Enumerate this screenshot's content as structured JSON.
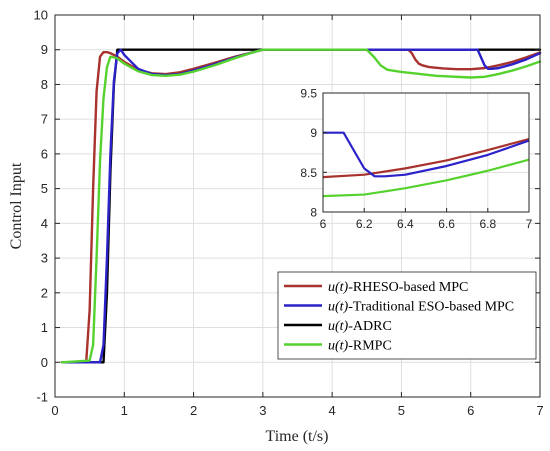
{
  "chart_data": {
    "type": "line",
    "xlabel": "Time (t/s)",
    "ylabel": "Control Input",
    "xlim": [
      0,
      7
    ],
    "ylim": [
      -1,
      10
    ],
    "xticks": [
      "0",
      "1",
      "2",
      "3",
      "4",
      "5",
      "6",
      "7"
    ],
    "yticks": [
      "-1",
      "0",
      "1",
      "2",
      "3",
      "4",
      "5",
      "6",
      "7",
      "8",
      "9",
      "10"
    ],
    "grid": true,
    "legend_position": "lower-right",
    "series": [
      {
        "name": "u(t)-RHESO-based MPC",
        "legend_var": "u(t)",
        "legend_rest": "-RHESO-based MPC",
        "color": "#a8322d",
        "x": [
          0.1,
          0.45,
          0.5,
          0.55,
          0.6,
          0.65,
          0.7,
          0.75,
          0.8,
          0.9,
          1.0,
          1.2,
          1.4,
          1.6,
          1.8,
          2.0,
          2.3,
          2.6,
          2.9,
          3.0,
          4.0,
          5.0,
          5.1,
          5.15,
          5.2,
          5.25,
          5.3,
          5.4,
          5.6,
          5.8,
          6.0,
          6.2,
          6.4,
          6.6,
          6.8,
          7.0
        ],
        "y": [
          0,
          0,
          1.5,
          5.0,
          7.8,
          8.8,
          8.93,
          8.93,
          8.9,
          8.8,
          8.65,
          8.42,
          8.32,
          8.3,
          8.35,
          8.45,
          8.62,
          8.8,
          8.95,
          9.0,
          9.0,
          9.0,
          9.0,
          8.9,
          8.72,
          8.6,
          8.55,
          8.5,
          8.46,
          8.44,
          8.44,
          8.47,
          8.55,
          8.65,
          8.78,
          8.92
        ]
      },
      {
        "name": "u(t)-Traditional ESO-based MPC",
        "legend_var": "u(t)",
        "legend_rest": "-Traditional ESO-based MPC",
        "color": "#2b22c9",
        "x": [
          0.1,
          0.65,
          0.7,
          0.75,
          0.8,
          0.85,
          0.9,
          0.95,
          1.0,
          1.2,
          1.4,
          1.6,
          1.8,
          2.0,
          2.3,
          2.6,
          2.9,
          3.0,
          4.0,
          5.0,
          6.0,
          6.1,
          6.2,
          6.25,
          6.3,
          6.4,
          6.6,
          6.8,
          7.0
        ],
        "y": [
          0,
          0,
          0.5,
          3.0,
          6.0,
          8.1,
          8.9,
          9.0,
          8.85,
          8.45,
          8.3,
          8.27,
          8.3,
          8.4,
          8.58,
          8.78,
          8.95,
          9.0,
          9.0,
          9.0,
          9.0,
          9.0,
          8.55,
          8.45,
          8.45,
          8.47,
          8.58,
          8.72,
          8.9
        ]
      },
      {
        "name": "u(t)-ADRC",
        "legend_var": "u(t)",
        "legend_rest": "-ADRC",
        "color": "#000000",
        "x": [
          0.1,
          0.5,
          0.55,
          0.6,
          0.65,
          0.7,
          0.75,
          0.8,
          0.85,
          0.9,
          7.0
        ],
        "y": [
          0,
          0,
          0,
          0,
          0,
          0,
          2.0,
          5.5,
          8.0,
          9.0,
          9.0
        ]
      },
      {
        "name": "u(t)-RMPC",
        "legend_var": "u(t)",
        "legend_rest": "-RMPC",
        "color": "#56d22f",
        "x": [
          0.1,
          0.5,
          0.55,
          0.6,
          0.65,
          0.7,
          0.75,
          0.8,
          0.85,
          0.9,
          1.0,
          1.2,
          1.4,
          1.6,
          1.8,
          2.0,
          2.3,
          2.6,
          2.9,
          3.0,
          4.0,
          4.5,
          4.6,
          4.7,
          4.8,
          5.0,
          5.5,
          6.0,
          6.2,
          6.4,
          6.6,
          6.8,
          7.0
        ],
        "y": [
          0,
          0.05,
          0.5,
          3.0,
          5.8,
          7.6,
          8.5,
          8.8,
          8.78,
          8.75,
          8.6,
          8.38,
          8.27,
          8.25,
          8.28,
          8.37,
          8.55,
          8.76,
          8.95,
          9.0,
          9.0,
          9.0,
          8.8,
          8.55,
          8.42,
          8.36,
          8.25,
          8.2,
          8.22,
          8.3,
          8.4,
          8.52,
          8.66
        ]
      }
    ],
    "inset": {
      "xlim": [
        6,
        7
      ],
      "ylim": [
        8,
        9.5
      ],
      "xticks": [
        "6",
        "6.2",
        "6.4",
        "6.6",
        "6.8",
        "7"
      ],
      "yticks": [
        "8",
        "8.5",
        "9",
        "9.5"
      ]
    }
  }
}
